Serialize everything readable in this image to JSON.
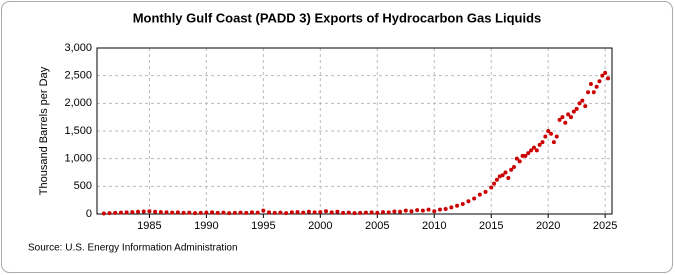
{
  "chart_data": {
    "type": "scatter",
    "title": "Monthly Gulf Coast (PADD 3) Exports of Hydrocarbon Gas Liquids",
    "y_label": "Thousand Barrels per Day",
    "source": "Source: U.S. Energy Information Administration",
    "color": "#cc0000",
    "grid": true,
    "x": [
      1981,
      1981.5,
      1982,
      1982.5,
      1983,
      1983.5,
      1984,
      1984.5,
      1985,
      1985.5,
      1986,
      1986.5,
      1987,
      1987.5,
      1988,
      1988.5,
      1989,
      1989.5,
      1990,
      1990.5,
      1991,
      1991.5,
      1992,
      1992.5,
      1993,
      1993.5,
      1994,
      1994.5,
      1995,
      1995.5,
      1996,
      1996.5,
      1997,
      1997.5,
      1998,
      1998.5,
      1999,
      1999.5,
      2000,
      2000.5,
      2001,
      2001.5,
      2002,
      2002.5,
      2003,
      2003.5,
      2004,
      2004.5,
      2005,
      2005.5,
      2006,
      2006.5,
      2007,
      2007.5,
      2008,
      2008.5,
      2009,
      2009.5,
      2010,
      2010.5,
      2011,
      2011.5,
      2012,
      2012.5,
      2013,
      2013.5,
      2014,
      2014.5,
      2015,
      2015.25,
      2015.5,
      2015.75,
      2016,
      2016.25,
      2016.5,
      2016.75,
      2017,
      2017.25,
      2017.5,
      2017.75,
      2018,
      2018.25,
      2018.5,
      2018.75,
      2019,
      2019.25,
      2019.5,
      2019.75,
      2020,
      2020.25,
      2020.5,
      2020.75,
      2021,
      2021.25,
      2021.5,
      2021.75,
      2022,
      2022.25,
      2022.5,
      2022.75,
      2023,
      2023.25,
      2023.5,
      2023.75,
      2024,
      2024.25,
      2024.5,
      2024.75,
      2025,
      2025.25
    ],
    "values": [
      10,
      15,
      20,
      25,
      30,
      35,
      40,
      45,
      50,
      40,
      35,
      30,
      25,
      30,
      20,
      25,
      15,
      20,
      25,
      30,
      20,
      25,
      15,
      20,
      25,
      20,
      30,
      25,
      60,
      30,
      20,
      25,
      15,
      30,
      35,
      25,
      40,
      30,
      35,
      50,
      30,
      40,
      20,
      25,
      15,
      20,
      25,
      30,
      20,
      35,
      30,
      45,
      40,
      60,
      50,
      70,
      60,
      80,
      50,
      80,
      90,
      120,
      150,
      180,
      230,
      280,
      350,
      400,
      480,
      550,
      620,
      680,
      700,
      750,
      650,
      800,
      850,
      1000,
      950,
      1050,
      1050,
      1100,
      1150,
      1200,
      1150,
      1250,
      1300,
      1400,
      1500,
      1450,
      1300,
      1400,
      1700,
      1750,
      1650,
      1800,
      1750,
      1850,
      1900,
      2000,
      2050,
      1950,
      2200,
      2350,
      2200,
      2300,
      2400,
      2500,
      2550,
      2450
    ],
    "xlim": [
      1980.4,
      2025.6
    ],
    "xticks": [
      1985,
      1990,
      1995,
      2000,
      2005,
      2010,
      2015,
      2020,
      2025
    ],
    "ylim": [
      0,
      3000
    ],
    "yticks": [
      0,
      500,
      {
        "value": 1000,
        "label": "1,000"
      },
      {
        "value": 1500,
        "label": "1,500"
      },
      {
        "value": 2000,
        "label": "2,000"
      },
      {
        "value": 2500,
        "label": "2,500"
      },
      {
        "value": 3000,
        "label": "3,000"
      }
    ]
  }
}
